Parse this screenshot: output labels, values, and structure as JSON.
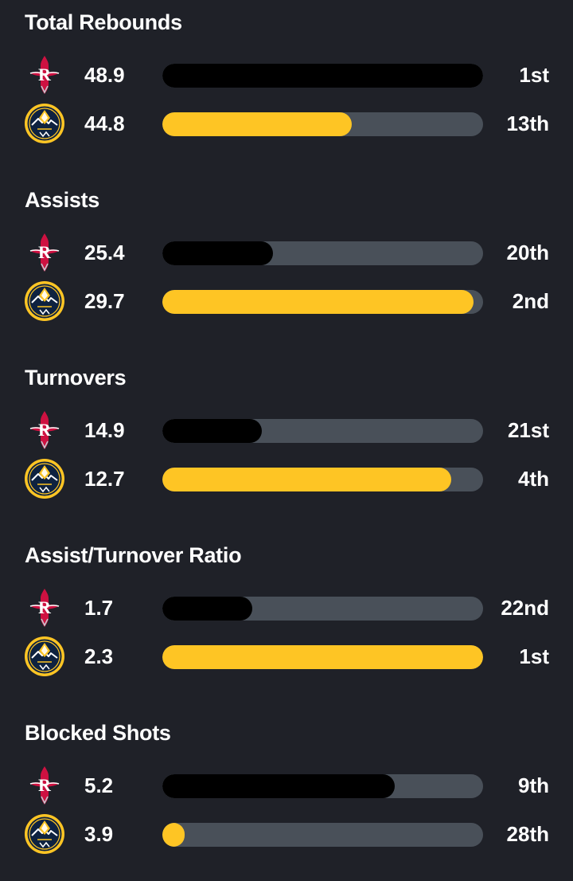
{
  "colors": {
    "background": "#1f2128",
    "track": "#495059",
    "rockets_bar": "#000000",
    "nuggets_bar": "#fec524"
  },
  "teams": {
    "rockets": {
      "logo_icon": "rockets-logo-icon",
      "color": "#ce1141"
    },
    "nuggets": {
      "logo_icon": "nuggets-logo-icon",
      "color": "#0e2240",
      "accent": "#fec524"
    }
  },
  "stats": [
    {
      "title": "Total Rebounds",
      "rockets": {
        "value": "48.9",
        "rank": "1st",
        "fill_fraction": 1.0
      },
      "nuggets": {
        "value": "44.8",
        "rank": "13th",
        "fill_fraction": 0.59
      }
    },
    {
      "title": "Assists",
      "rockets": {
        "value": "25.4",
        "rank": "20th",
        "fill_fraction": 0.345
      },
      "nuggets": {
        "value": "29.7",
        "rank": "2nd",
        "fill_fraction": 0.97
      }
    },
    {
      "title": "Turnovers",
      "rockets": {
        "value": "14.9",
        "rank": "21st",
        "fill_fraction": 0.31
      },
      "nuggets": {
        "value": "12.7",
        "rank": "4th",
        "fill_fraction": 0.9
      }
    },
    {
      "title": "Assist/Turnover Ratio",
      "rockets": {
        "value": "1.7",
        "rank": "22nd",
        "fill_fraction": 0.28
      },
      "nuggets": {
        "value": "2.3",
        "rank": "1st",
        "fill_fraction": 1.0
      }
    },
    {
      "title": "Blocked Shots",
      "rockets": {
        "value": "5.2",
        "rank": "9th",
        "fill_fraction": 0.725
      },
      "nuggets": {
        "value": "3.9",
        "rank": "28th",
        "fill_fraction": 0.07
      }
    }
  ]
}
